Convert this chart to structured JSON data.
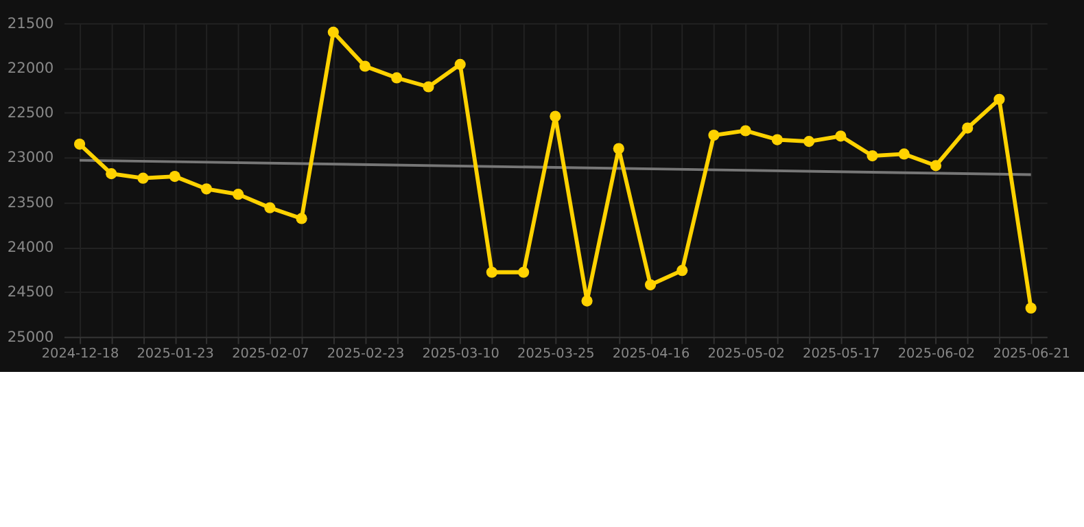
{
  "chart_data": {
    "type": "line",
    "marker": "circle",
    "categories": [
      "2024-12-18",
      null,
      null,
      "2025-01-23",
      null,
      null,
      "2025-02-07",
      null,
      null,
      "2025-02-23",
      null,
      null,
      "2025-03-10",
      null,
      null,
      "2025-03-25",
      null,
      null,
      "2025-04-16",
      null,
      null,
      "2025-05-02",
      null,
      null,
      "2025-05-17",
      null,
      null,
      "2025-06-02",
      null,
      null,
      "2025-06-21"
    ],
    "series": [
      {
        "color": "#ffd200",
        "values": [
          22850,
          23180,
          23230,
          23210,
          23350,
          23410,
          23560,
          23680,
          21600,
          21980,
          22110,
          22210,
          21960,
          24280,
          24280,
          22540,
          24600,
          22900,
          24420,
          24260,
          22750,
          22700,
          22800,
          22820,
          22760,
          22980,
          22960,
          23090,
          22670,
          22350,
          24680
        ]
      },
      {
        "type": "line",
        "color": "#777777",
        "marker": "none",
        "values": [
          23030,
          null,
          null,
          null,
          null,
          null,
          null,
          null,
          null,
          null,
          null,
          null,
          null,
          null,
          null,
          null,
          null,
          null,
          null,
          null,
          null,
          null,
          null,
          null,
          null,
          null,
          null,
          null,
          null,
          null,
          23190
        ]
      }
    ],
    "ylim": [
      25000,
      21500
    ],
    "yticks": [
      21500,
      22000,
      22500,
      23000,
      23500,
      24000,
      24500,
      25000
    ],
    "grid": true
  }
}
